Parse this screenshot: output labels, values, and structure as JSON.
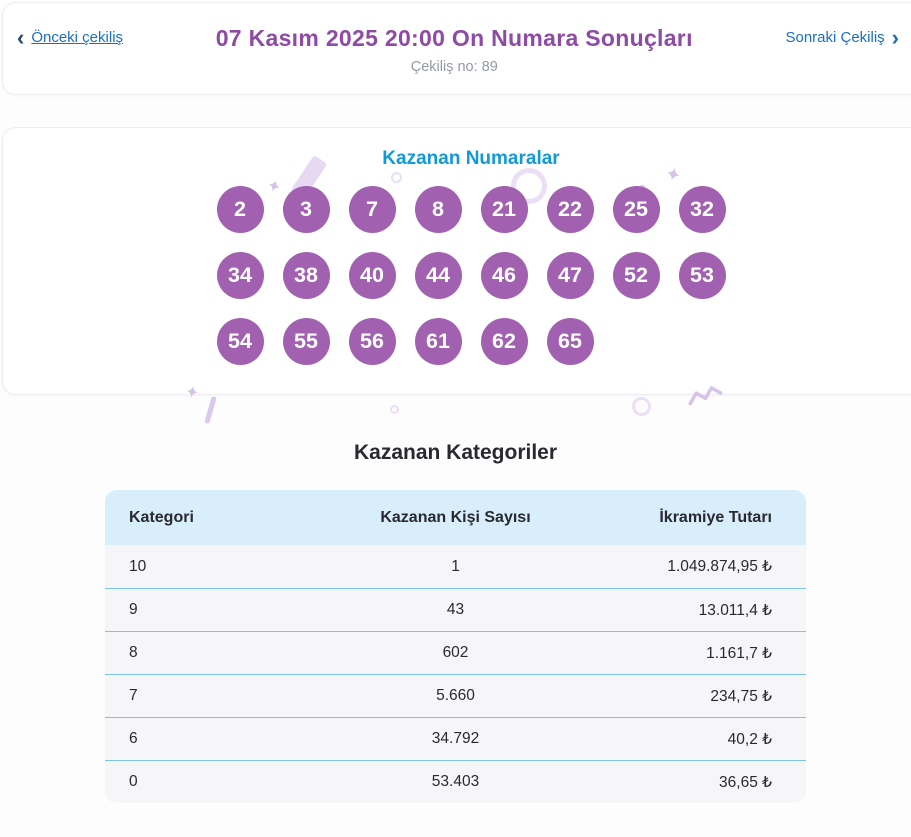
{
  "colors": {
    "title-purple": "#8f4aa5",
    "ball-purple": "#a160b0",
    "link-blue": "#1b6fc0",
    "numbers-heading-blue": "#1299d8",
    "table-header-bg": "#d8eefa",
    "table-row-bg": "#f6f6f8",
    "table-divider": "#7cc3ea",
    "muted-gray": "#9399a3",
    "text-dark": "#29292f"
  },
  "header": {
    "prev_chevron": "‹",
    "prev_link": "Önceki çekiliş",
    "title": "07 Kasım 2025 20:00 On Numara Sonuçları",
    "draw_no": "Çekiliş no: 89",
    "next_link": "Sonraki Çekiliş",
    "next_chevron": "›"
  },
  "numbers": {
    "heading": "Kazanan Numaralar",
    "balls": [
      "2",
      "3",
      "7",
      "8",
      "21",
      "22",
      "25",
      "32",
      "34",
      "38",
      "40",
      "44",
      "46",
      "47",
      "52",
      "53",
      "54",
      "55",
      "56",
      "61",
      "62",
      "65"
    ]
  },
  "categories": {
    "heading": "Kazanan Kategoriler",
    "columns": [
      "Kategori",
      "Kazanan Kişi Sayısı",
      "İkramiye Tutarı"
    ],
    "rows": [
      {
        "category": "10",
        "winners": "1",
        "prize": "1.049.874,95 ₺"
      },
      {
        "category": "9",
        "winners": "43",
        "prize": "13.011,4 ₺"
      },
      {
        "category": "8",
        "winners": "602",
        "prize": "1.161,7 ₺"
      },
      {
        "category": "7",
        "winners": "5.660",
        "prize": "234,75 ₺"
      },
      {
        "category": "6",
        "winners": "34.792",
        "prize": "40,2 ₺"
      },
      {
        "category": "0",
        "winners": "53.403",
        "prize": "36,65 ₺"
      }
    ]
  }
}
